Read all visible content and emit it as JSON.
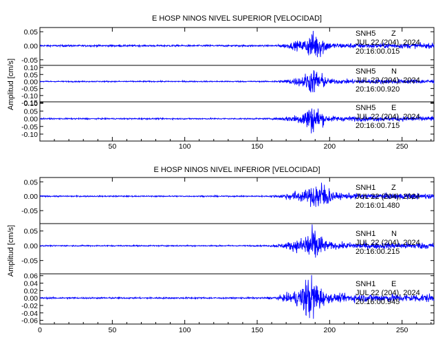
{
  "chart_data": [
    {
      "type": "line",
      "title": "E HOSP NINOS NIVEL SUPERIOR [VELOCIDAD]",
      "ylabel": "Amplitud [cm/s]",
      "x_ticks": [
        "50",
        "100",
        "150",
        "200",
        "250"
      ],
      "xlim": [
        0,
        272
      ],
      "series_color": "#0000ff",
      "traces": [
        {
          "ylim": [
            -0.07,
            0.065
          ],
          "yticks": [
            "0.05",
            "0.00",
            "-0.05"
          ],
          "ytick_values": [
            0.05,
            0.0,
            -0.05
          ],
          "station": "SNH5",
          "component": "Z",
          "date": "JUL 22 (204), 2024",
          "time": "20:16:00.015",
          "noise_level": 0.003,
          "peak_amplitude": 0.05,
          "peak_time": 190,
          "event_start": 153
        },
        {
          "ylim": [
            -0.145,
            0.115
          ],
          "yticks": [
            "0.10",
            "0.05",
            "0.00",
            "-0.05",
            "-0.10",
            "-0.15"
          ],
          "ytick_values": [
            0.1,
            0.05,
            0.0,
            -0.05,
            -0.1,
            -0.15
          ],
          "station": "SNH5",
          "component": "N",
          "date": "JUL 22 (204), 2024",
          "time": "20:16:00.920",
          "noise_level": 0.004,
          "peak_amplitude": 0.09,
          "peak_time": 189,
          "event_start": 153
        },
        {
          "ylim": [
            -0.145,
            0.11
          ],
          "yticks": [
            "0.10",
            "0.05",
            "0.00",
            "-0.05",
            "-0.10"
          ],
          "ytick_values": [
            0.1,
            0.05,
            0.0,
            -0.05,
            -0.1
          ],
          "station": "SNH5",
          "component": "E",
          "date": "JUL 22 (204), 2024",
          "time": "20:16:00.715",
          "noise_level": 0.004,
          "peak_amplitude": 0.09,
          "peak_time": 188,
          "event_start": 153
        }
      ]
    },
    {
      "type": "line",
      "title": "E HOSP NINOS NIVEL INFERIOR [VELOCIDAD]",
      "ylabel": "Amplitud [cm/s]",
      "x_ticks": [
        "0",
        "50",
        "100",
        "150",
        "200",
        "250"
      ],
      "xlim": [
        0,
        272
      ],
      "series_color": "#0000ff",
      "traces": [
        {
          "ylim": [
            -0.095,
            0.065
          ],
          "yticks": [
            "0.05",
            "0.00",
            "-0.05"
          ],
          "ytick_values": [
            0.05,
            0.0,
            -0.05
          ],
          "station": "SNH1",
          "component": "Z",
          "date": "JUL 22 (204), 2024",
          "time": "20:16:01.480",
          "noise_level": 0.002,
          "peak_amplitude": 0.055,
          "peak_time": 193,
          "event_start": 152
        },
        {
          "ylim": [
            -0.095,
            0.075
          ],
          "yticks": [
            "0.05",
            "0.00",
            "-0.05"
          ],
          "ytick_values": [
            0.05,
            0.0,
            -0.05
          ],
          "station": "SNH1",
          "component": "N",
          "date": "JUL 22 (204), 2024",
          "time": "20:16:00.215",
          "noise_level": 0.002,
          "peak_amplitude": 0.06,
          "peak_time": 188,
          "event_start": 152
        },
        {
          "ylim": [
            -0.07,
            0.065
          ],
          "yticks": [
            "0.06",
            "0.04",
            "0.02",
            "0.00",
            "-0.02",
            "-0.04",
            "-0.06"
          ],
          "ytick_values": [
            0.06,
            0.04,
            0.02,
            0.0,
            -0.02,
            -0.04,
            -0.06
          ],
          "station": "SNH1",
          "component": "E",
          "date": "JUL 22 (204), 2024",
          "time": "20:16:00.945",
          "noise_level": 0.002,
          "peak_amplitude": 0.06,
          "peak_time": 187,
          "event_start": 152
        }
      ]
    }
  ]
}
